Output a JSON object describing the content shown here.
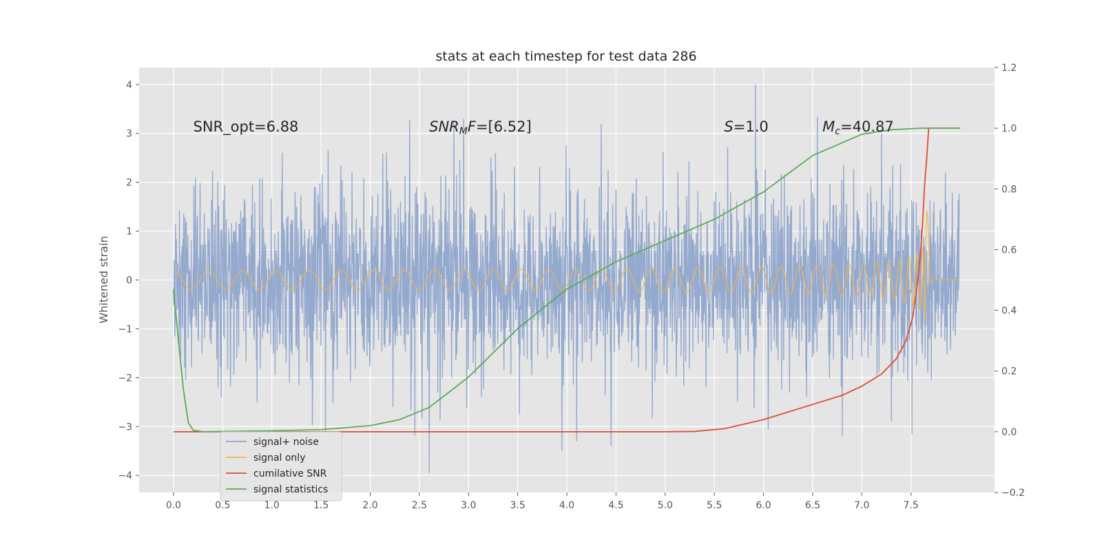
{
  "chart_data": {
    "type": "line",
    "title": "stats at each timestep for test data 286",
    "ylabel": "Whitened strain",
    "xlim": [
      -0.35,
      8.35
    ],
    "ylim": [
      -4.35,
      4.35
    ],
    "y2lim": [
      -0.2,
      1.2
    ],
    "x_ticks": [
      0.0,
      0.5,
      1.0,
      1.5,
      2.0,
      2.5,
      3.0,
      3.5,
      4.0,
      4.5,
      5.0,
      5.5,
      6.0,
      6.5,
      7.0,
      7.5
    ],
    "x_tick_labels": [
      "0.0",
      "0.5",
      "1.0",
      "1.5",
      "2.0",
      "2.5",
      "3.0",
      "3.5",
      "4.0",
      "4.5",
      "5.0",
      "5.5",
      "6.0",
      "6.5",
      "7.0",
      "7.5"
    ],
    "y_ticks": [
      4,
      3,
      2,
      1,
      0,
      -1,
      -2,
      -3,
      -4
    ],
    "y_tick_labels": [
      "4",
      "3",
      "2",
      "1",
      "0",
      "−1",
      "−2",
      "−3",
      "−4"
    ],
    "y2_ticks": [
      1.2,
      1.0,
      0.8,
      0.6,
      0.4,
      0.2,
      0.0,
      -0.2
    ],
    "y2_tick_labels": [
      "1.2",
      "1.0",
      "0.8",
      "0.6",
      "0.4",
      "0.2",
      "0.0",
      "−0.2"
    ],
    "grid": true,
    "legend_placement": "lower-left",
    "annotations": [
      {
        "key": "snr-opt",
        "parts": [
          {
            "t": "SNR_opt=6.88",
            "i": false
          }
        ],
        "x": 0.2,
        "y": 3.15
      },
      {
        "key": "snr-mf",
        "parts": [
          {
            "t": "SNR",
            "i": true
          },
          {
            "t": "M",
            "i": true,
            "sub": true
          },
          {
            "t": "F",
            "i": true
          },
          {
            "t": "=[6.52]",
            "i": false
          }
        ],
        "x": 2.6,
        "y": 3.15
      },
      {
        "key": "s-value",
        "parts": [
          {
            "t": "S",
            "i": true
          },
          {
            "t": "=1.0",
            "i": false
          }
        ],
        "x": 5.6,
        "y": 3.15
      },
      {
        "key": "chirp-mass",
        "parts": [
          {
            "t": "M",
            "i": true
          },
          {
            "t": "c",
            "i": true,
            "sub": true
          },
          {
            "t": "=40.87",
            "i": false
          }
        ],
        "x": 6.6,
        "y": 3.15
      }
    ],
    "series": [
      {
        "name": "signal+ noise",
        "axis": "left",
        "color": "#8fa5cc",
        "kind": "noise",
        "x_range": [
          0.0,
          7.99
        ],
        "y_range": [
          -4.0,
          4.0
        ],
        "spikes": [
          [
            2.4,
            3.28
          ],
          [
            2.85,
            3.25
          ],
          [
            2.95,
            3.3
          ],
          [
            4.35,
            3.2
          ],
          [
            5.92,
            4.0
          ],
          [
            7.2,
            3.0
          ],
          [
            2.6,
            -3.95
          ],
          [
            3.95,
            -3.5
          ],
          [
            4.45,
            -3.4
          ],
          [
            4.1,
            -3.3
          ],
          [
            6.8,
            -3.2
          ],
          [
            7.3,
            -2.9
          ]
        ]
      },
      {
        "name": "signal only",
        "axis": "left",
        "color": "#f0b44e",
        "kind": "chirp",
        "x_range": [
          0.0,
          7.99
        ],
        "merger_x": 7.66,
        "peak_amplitude": 1.6
      },
      {
        "name": "cumilative SNR",
        "axis": "right",
        "color": "#e24a33",
        "kind": "line",
        "x": [
          0.0,
          0.5,
          1.0,
          2.0,
          3.0,
          4.0,
          5.0,
          5.3,
          5.6,
          6.0,
          6.5,
          6.8,
          7.0,
          7.2,
          7.35,
          7.45,
          7.52,
          7.57,
          7.6,
          7.62,
          7.64,
          7.66,
          7.68,
          8.0
        ],
        "y": [
          0.0,
          0.0,
          0.0,
          0.0,
          0.0,
          0.0,
          0.0,
          0.001,
          0.01,
          0.04,
          0.09,
          0.12,
          0.15,
          0.19,
          0.24,
          0.3,
          0.38,
          0.5,
          0.6,
          0.7,
          0.82,
          0.9,
          1.0,
          1.0
        ]
      },
      {
        "name": "signal statistics",
        "axis": "right",
        "color": "#5aa85a",
        "kind": "line",
        "x": [
          0.0,
          0.05,
          0.1,
          0.15,
          0.2,
          0.3,
          1.0,
          1.5,
          2.0,
          2.3,
          2.6,
          3.0,
          3.5,
          4.0,
          4.5,
          5.0,
          5.5,
          6.0,
          6.5,
          7.0,
          7.3,
          7.6,
          8.0
        ],
        "y": [
          0.47,
          0.3,
          0.14,
          0.03,
          0.005,
          0.0,
          0.003,
          0.007,
          0.02,
          0.04,
          0.08,
          0.18,
          0.34,
          0.47,
          0.56,
          0.63,
          0.7,
          0.79,
          0.91,
          0.98,
          0.995,
          1.0,
          1.0
        ]
      }
    ]
  }
}
